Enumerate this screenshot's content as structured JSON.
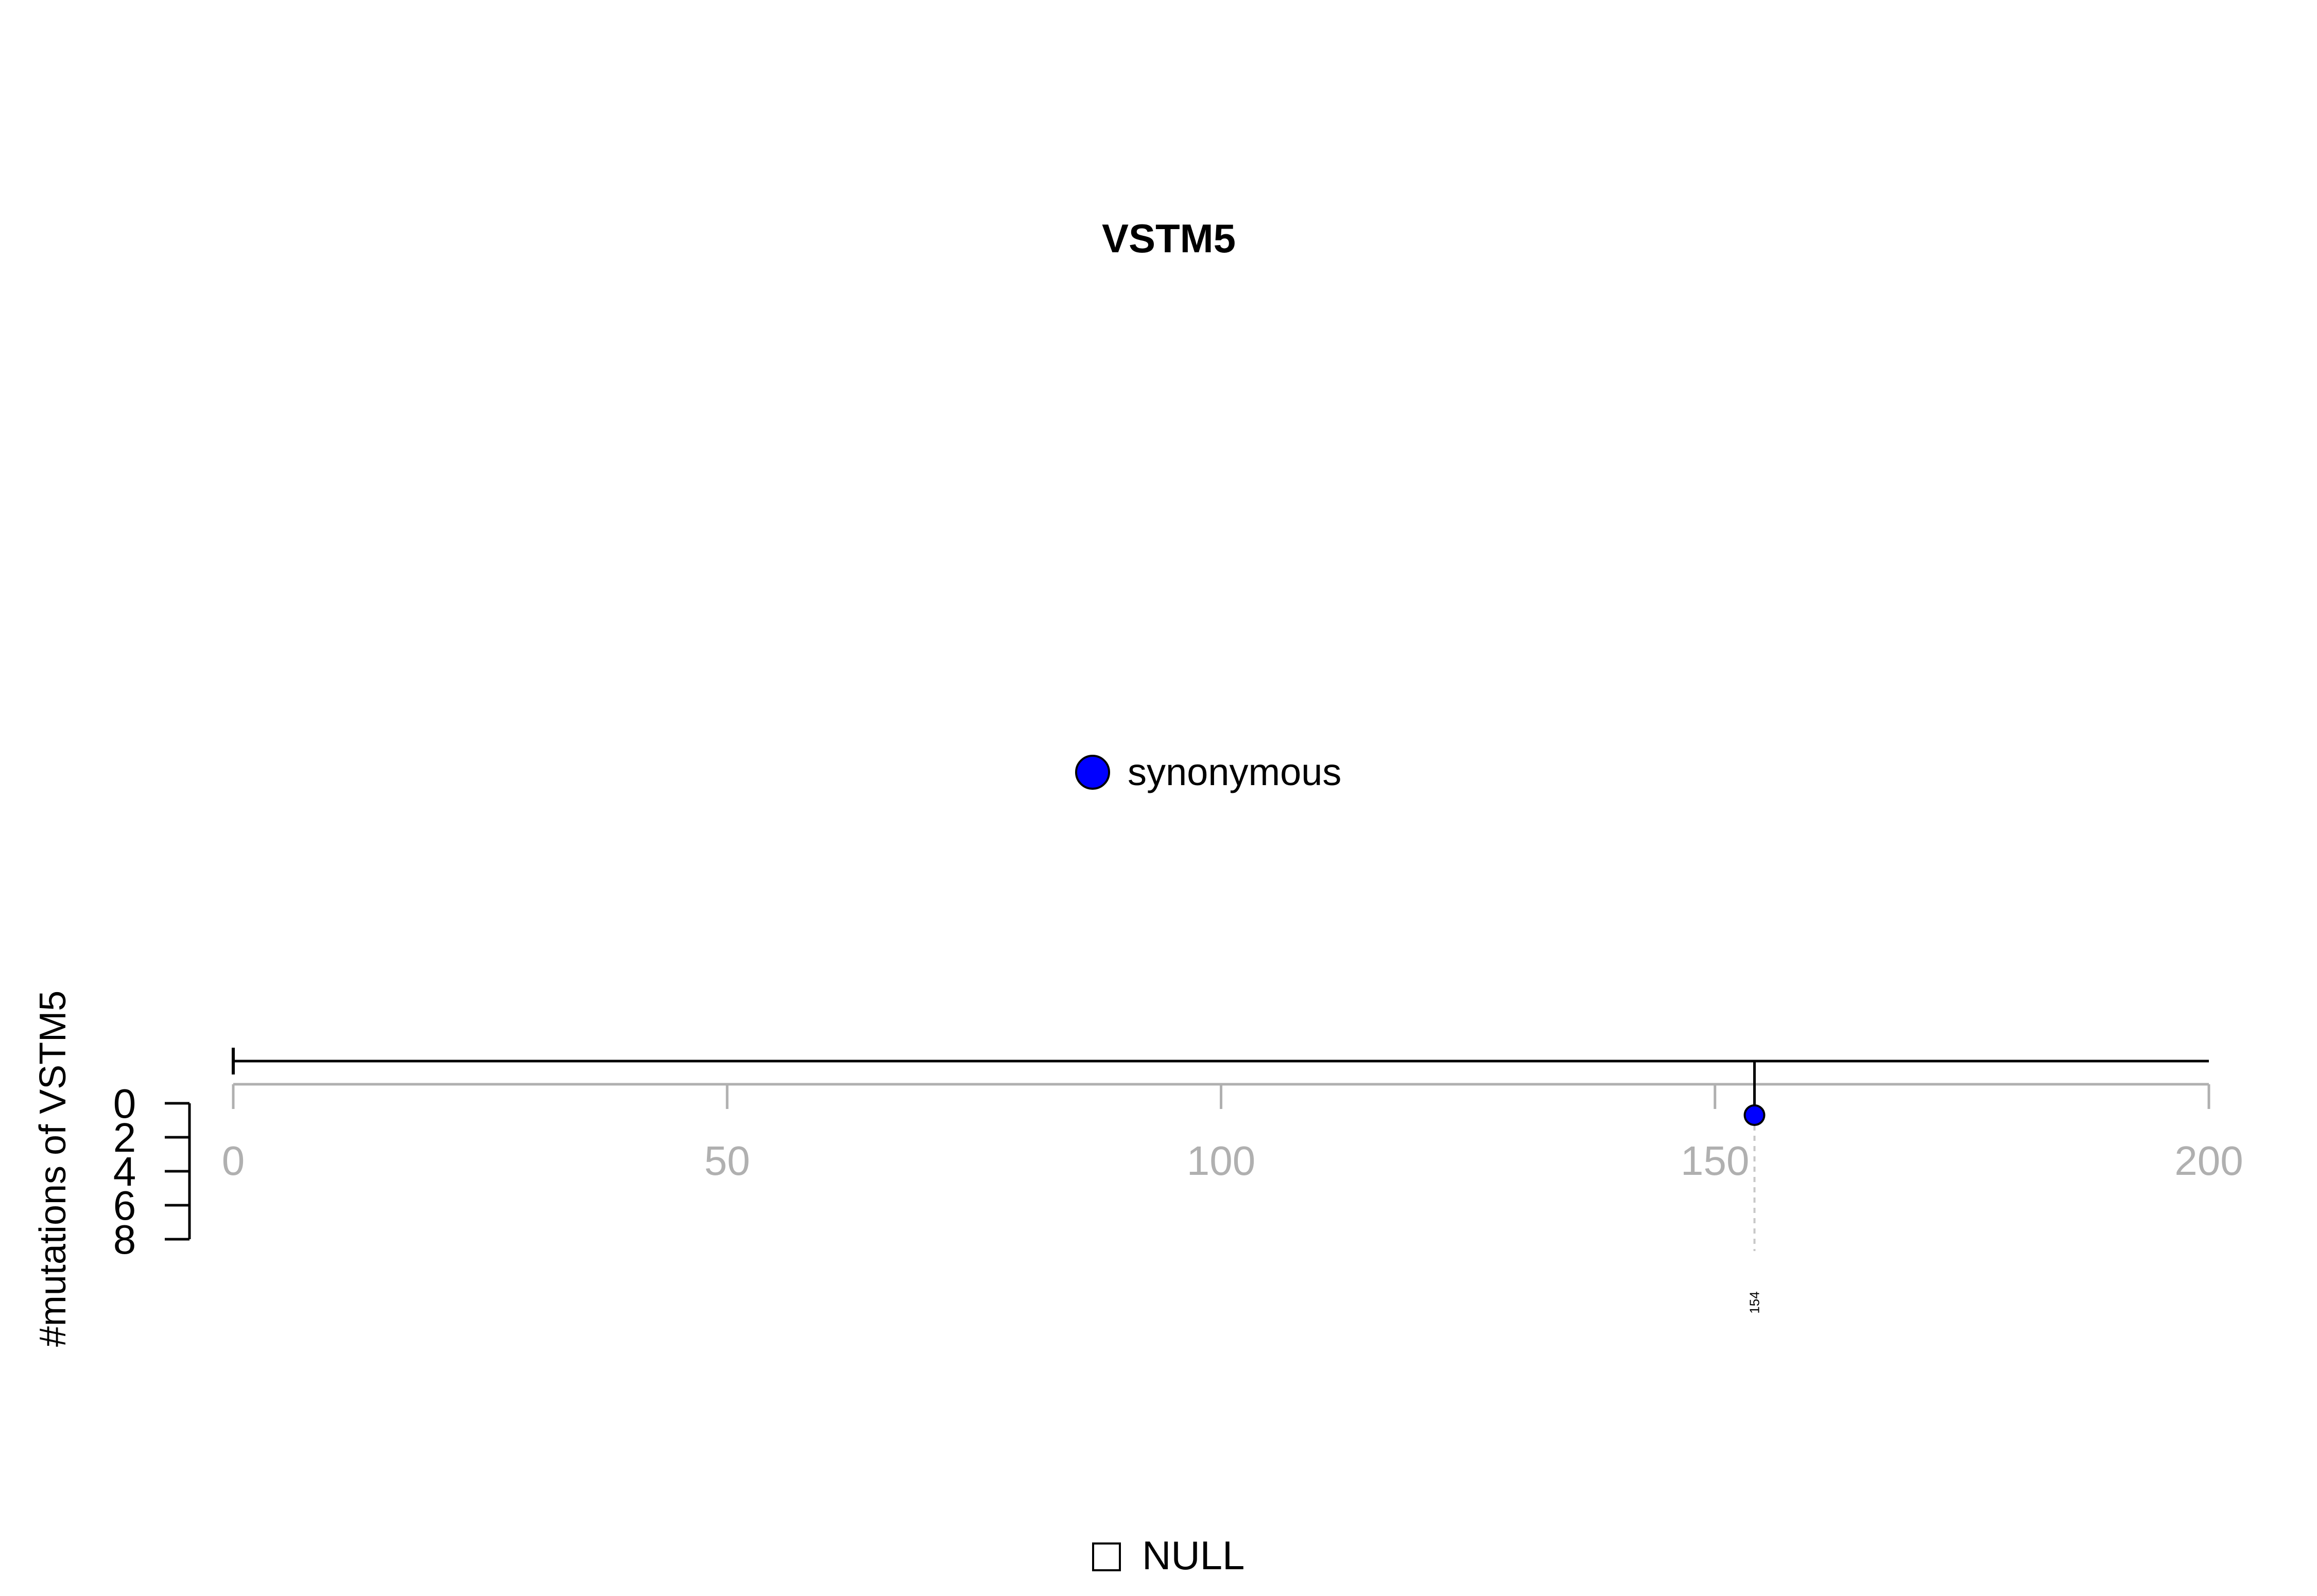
{
  "chart_data": {
    "type": "lollipop",
    "title": "VSTM5",
    "ylabel": "#mutations of VSTM5",
    "xlim": [
      0,
      200
    ],
    "x_ticks": [
      "0",
      "50",
      "100",
      "150",
      "200"
    ],
    "x_tick_values": [
      0,
      50,
      100,
      150,
      200
    ],
    "y_ticks": [
      "0",
      "2",
      "4",
      "6",
      "8"
    ],
    "y_tick_values": [
      0,
      2,
      4,
      6,
      8
    ],
    "ylim": [
      0,
      8
    ],
    "protein_length": 200,
    "points": [
      {
        "position": 154,
        "count": 1,
        "label": "154",
        "type": "synonymous",
        "color": "#0000ff"
      }
    ],
    "legend": [
      {
        "label": "synonymous",
        "color": "#0000ff"
      }
    ],
    "domain_legend": [
      {
        "label": "NULL"
      }
    ]
  }
}
